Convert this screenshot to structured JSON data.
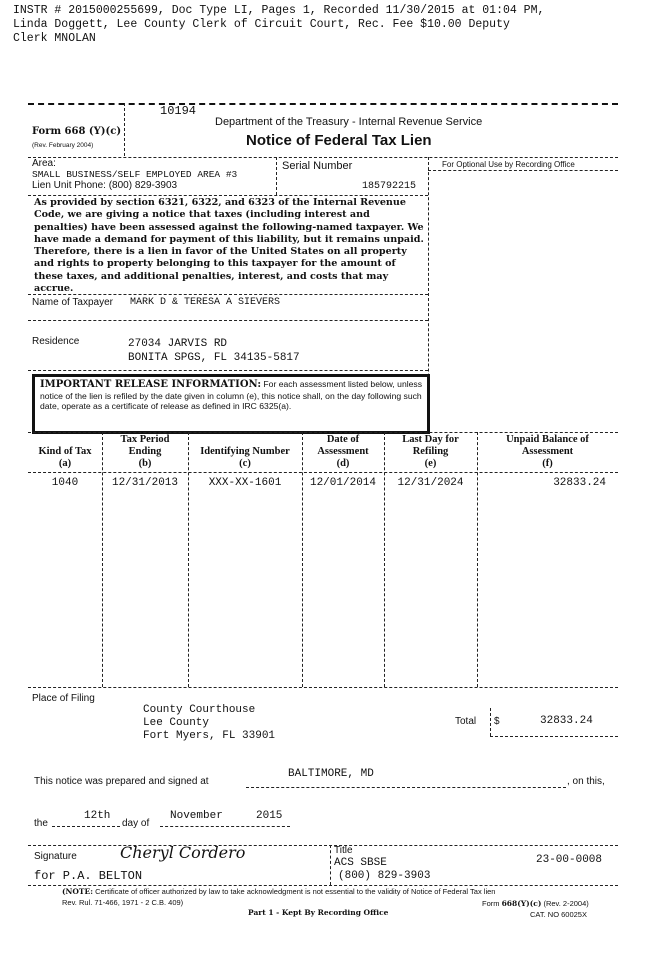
{
  "recording_header": [
    "INSTR # 2015000255699, Doc Type LI, Pages 1, Recorded 11/30/2015 at 01:04 PM,",
    "Linda Doggett, Lee County Clerk of Circuit Court,  Rec. Fee  $10.00 Deputy",
    "Clerk MNOLAN"
  ],
  "form": {
    "number": "Form 668 (Y)(c)",
    "revision": "(Rev. February 2004)",
    "control_number": "10194",
    "agency": "Department of the Treasury - Internal Revenue Service",
    "title": "Notice of Federal Tax Lien"
  },
  "area": {
    "label": "Area:",
    "value": "SMALL BUSINESS/SELF EMPLOYED AREA #3",
    "phone": "Lien Unit Phone: (800) 829-3903"
  },
  "serial": {
    "label": "Serial Number",
    "value": "185792215"
  },
  "optional_label": "For Optional Use by Recording Office",
  "statement": "As provided by section 6321, 6322, and 6323 of the Internal Revenue Code, we are giving a notice that taxes (including interest and penalties) have been assessed against the following-named taxpayer. We have made a demand for payment of this liability, but it remains unpaid. Therefore, there is a lien in favor of the United States on all property and rights to property belonging to this taxpayer for the amount of these taxes, and additional penalties, interest, and costs that may accrue.",
  "taxpayer": {
    "label": "Name of Taxpayer",
    "value": "MARK D & TERESA A SIEVERS"
  },
  "residence": {
    "label": "Residence",
    "line1": "27034 JARVIS RD",
    "line2": "BONITA SPGS, FL 34135-5817"
  },
  "release": {
    "heading": "IMPORTANT RELEASE INFORMATION:",
    "text": " For each assessment listed below, unless notice of the lien is refiled by the date given in column (e), this notice shall, on the day following such date, operate as a certificate of release as defined in IRC 6325(a)."
  },
  "table": {
    "headers": [
      {
        "t": "Kind of Tax",
        "s": "(a)"
      },
      {
        "t": "Tax Period Ending",
        "s": "(b)"
      },
      {
        "t": "Identifying Number",
        "s": "(c)"
      },
      {
        "t": "Date of Assessment",
        "s": "(d)"
      },
      {
        "t": "Last Day for Refiling",
        "s": "(e)"
      },
      {
        "t": "Unpaid Balance of Assessment",
        "s": "(f)"
      }
    ],
    "rows": [
      [
        "1040",
        "12/31/2013",
        "XXX-XX-1601",
        "12/01/2014",
        "12/31/2024",
        "32833.24"
      ]
    ]
  },
  "filing": {
    "label": "Place of Filing",
    "line1": "County Courthouse",
    "line2": "Lee County",
    "line3": "Fort Myers, FL 33901",
    "total_label": "Total",
    "currency": "$",
    "total": "32833.24"
  },
  "prepared": {
    "text": "This notice was prepared and signed at",
    "place": "BALTIMORE, MD",
    "on_this": ", on this,",
    "the": "the",
    "day": "12th",
    "day_of": "day of",
    "month": "November",
    "year": "2015"
  },
  "signature": {
    "label": "Signature",
    "for": "for P.A. BELTON",
    "signer": "Cheryl Cordero",
    "title_label": "Title",
    "title": "ACS SBSE",
    "phone": "(800) 829-3903",
    "id": "23-00-0008"
  },
  "note": {
    "bold": "(NOTE:",
    "text": " Certificate of officer authorized by law to take acknowledgment is not essential to the validity of Notice of Federal Tax lien",
    "line2": "Rev. Rul. 71-466, 1971 - 2 C.B. 409)"
  },
  "footer": {
    "part": "Part 1 - Kept By Recording Office",
    "form_prefix": "Form ",
    "form": "668(Y)(c)",
    "form_rev": " (Rev. 2-2004)",
    "cat": "CAT. NO 60025X"
  }
}
